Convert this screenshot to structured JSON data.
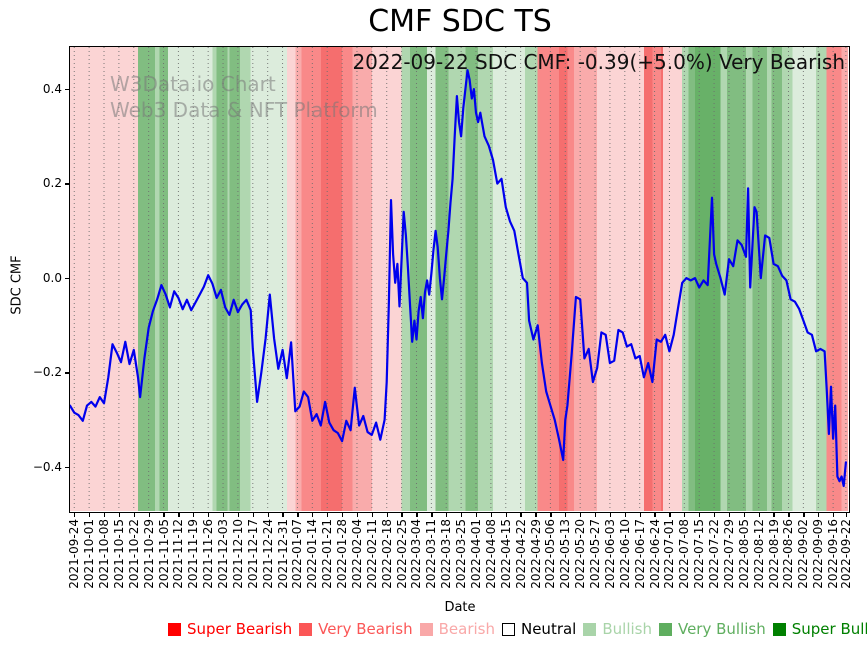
{
  "page": {
    "title": "CMF SDC TS",
    "annotation": "2022-09-22 SDC CMF: -0.39(+5.0%) Very Bearish",
    "watermark_line1": "W3Data.io Chart",
    "watermark_line2": "Web3 Data & NFT Platform"
  },
  "chart_data": {
    "type": "line",
    "title": "CMF SDC TS",
    "xlabel": "Date",
    "ylabel": "SDC CMF",
    "x_start_date": "2021-09-24",
    "x_end_date": "2022-09-22",
    "xlim_days": [
      -2,
      364
    ],
    "ylim": [
      -0.493,
      0.489
    ],
    "grid": {
      "axis": "x",
      "style": "dotted",
      "color": "#6e6e6e"
    },
    "line_color": "#0000ee",
    "line_width": 2.2,
    "y_tick_values": [
      0.4,
      0.2,
      0.0,
      -0.2,
      -0.4
    ],
    "y_tick_labels": [
      "0.4",
      "0.2",
      "0.0",
      "−0.2",
      "−0.4"
    ],
    "x_tick_days": [
      0,
      7,
      14,
      21,
      28,
      35,
      42,
      49,
      56,
      63,
      70,
      77,
      84,
      91,
      98,
      105,
      112,
      119,
      126,
      133,
      140,
      147,
      154,
      161,
      168,
      175,
      182,
      189,
      196,
      203,
      210,
      217,
      224,
      231,
      238,
      245,
      252,
      259,
      266,
      273,
      280,
      287,
      294,
      301,
      308,
      315,
      322,
      329,
      336,
      343,
      350,
      357,
      363
    ],
    "x_tick_labels": [
      "2021-09-24",
      "2021-10-01",
      "2021-10-08",
      "2021-10-15",
      "2021-10-22",
      "2021-10-29",
      "2021-11-05",
      "2021-11-12",
      "2021-11-19",
      "2021-11-26",
      "2021-12-03",
      "2021-12-10",
      "2021-12-17",
      "2021-12-24",
      "2021-12-31",
      "2022-01-07",
      "2022-01-14",
      "2022-01-21",
      "2022-01-28",
      "2022-02-04",
      "2022-02-11",
      "2022-02-18",
      "2022-02-25",
      "2022-03-04",
      "2022-03-11",
      "2022-03-18",
      "2022-03-25",
      "2022-04-01",
      "2022-04-08",
      "2022-04-15",
      "2022-04-22",
      "2022-04-29",
      "2022-05-06",
      "2022-05-13",
      "2022-05-20",
      "2022-05-27",
      "2022-06-03",
      "2022-06-10",
      "2022-06-17",
      "2022-06-24",
      "2022-07-01",
      "2022-07-08",
      "2022-07-15",
      "2022-07-22",
      "2022-07-29",
      "2022-08-05",
      "2022-08-12",
      "2022-08-19",
      "2022-08-26",
      "2022-09-02",
      "2022-09-09",
      "2022-09-16",
      "2022-09-22"
    ],
    "band_levels": {
      "bearish": "#fbd4d4",
      "bearish_mid": "#f9abab",
      "very_bearish": "#f98989",
      "very_bearish_strong": "#f56e6e",
      "bullish_pale": "#dcecdc",
      "bullish": "#b0d7b0",
      "very_bullish": "#81bd81",
      "very_bullish_strong": "#68b168"
    },
    "bands": [
      [
        -2,
        30,
        "bearish"
      ],
      [
        30,
        38,
        "very_bullish"
      ],
      [
        38,
        40,
        "bullish"
      ],
      [
        40,
        44,
        "very_bullish"
      ],
      [
        44,
        65,
        "bullish_pale"
      ],
      [
        65,
        67,
        "bullish"
      ],
      [
        67,
        72,
        "very_bullish"
      ],
      [
        72,
        73,
        "bullish"
      ],
      [
        73,
        78,
        "very_bullish"
      ],
      [
        78,
        83,
        "bullish"
      ],
      [
        83,
        100,
        "bullish_pale"
      ],
      [
        100,
        104,
        "bearish"
      ],
      [
        104,
        107,
        "bearish_mid"
      ],
      [
        107,
        116,
        "very_bearish"
      ],
      [
        116,
        126,
        "very_bearish_strong"
      ],
      [
        126,
        131,
        "very_bearish"
      ],
      [
        131,
        140,
        "bearish_mid"
      ],
      [
        140,
        154,
        "bearish"
      ],
      [
        154,
        158,
        "bullish"
      ],
      [
        158,
        166,
        "very_bullish"
      ],
      [
        166,
        170,
        "bullish_pale"
      ],
      [
        170,
        176,
        "very_bullish"
      ],
      [
        176,
        184,
        "bullish"
      ],
      [
        184,
        190,
        "very_bullish"
      ],
      [
        190,
        197,
        "bullish"
      ],
      [
        197,
        212,
        "bullish_pale"
      ],
      [
        212,
        218,
        "bullish"
      ],
      [
        218,
        228,
        "very_bearish"
      ],
      [
        228,
        232,
        "very_bearish_strong"
      ],
      [
        232,
        235,
        "very_bearish"
      ],
      [
        235,
        246,
        "bearish_mid"
      ],
      [
        246,
        268,
        "bearish"
      ],
      [
        268,
        272,
        "very_bearish_strong"
      ],
      [
        272,
        276,
        "very_bearish"
      ],
      [
        276,
        277,
        "very_bearish_strong"
      ],
      [
        277,
        286,
        "bearish"
      ],
      [
        286,
        289,
        "bullish"
      ],
      [
        289,
        292,
        "very_bullish"
      ],
      [
        292,
        304,
        "very_bullish_strong"
      ],
      [
        304,
        307,
        "bullish"
      ],
      [
        307,
        316,
        "very_bullish"
      ],
      [
        316,
        319,
        "bullish"
      ],
      [
        319,
        326,
        "very_bullish"
      ],
      [
        326,
        328,
        "bullish"
      ],
      [
        328,
        333,
        "very_bullish"
      ],
      [
        333,
        338,
        "bullish"
      ],
      [
        338,
        349,
        "bullish_pale"
      ],
      [
        349,
        354,
        "bullish"
      ],
      [
        354,
        361,
        "very_bearish"
      ],
      [
        361,
        364,
        "bearish_mid"
      ]
    ],
    "series": [
      {
        "name": "SDC CMF",
        "points": [
          [
            -2,
            -0.27
          ],
          [
            0,
            -0.285
          ],
          [
            2,
            -0.29
          ],
          [
            4,
            -0.302
          ],
          [
            6,
            -0.27
          ],
          [
            8,
            -0.262
          ],
          [
            10,
            -0.272
          ],
          [
            12,
            -0.252
          ],
          [
            14,
            -0.265
          ],
          [
            16,
            -0.21
          ],
          [
            18,
            -0.14
          ],
          [
            20,
            -0.158
          ],
          [
            22,
            -0.178
          ],
          [
            24,
            -0.135
          ],
          [
            26,
            -0.182
          ],
          [
            28,
            -0.152
          ],
          [
            30,
            -0.21
          ],
          [
            31,
            -0.252
          ],
          [
            33,
            -0.17
          ],
          [
            35,
            -0.105
          ],
          [
            37,
            -0.07
          ],
          [
            39,
            -0.045
          ],
          [
            41,
            -0.015
          ],
          [
            43,
            -0.035
          ],
          [
            45,
            -0.062
          ],
          [
            47,
            -0.028
          ],
          [
            49,
            -0.042
          ],
          [
            51,
            -0.066
          ],
          [
            53,
            -0.046
          ],
          [
            55,
            -0.068
          ],
          [
            57,
            -0.052
          ],
          [
            59,
            -0.035
          ],
          [
            61,
            -0.018
          ],
          [
            63,
            0.006
          ],
          [
            65,
            -0.012
          ],
          [
            67,
            -0.042
          ],
          [
            69,
            -0.025
          ],
          [
            71,
            -0.062
          ],
          [
            73,
            -0.078
          ],
          [
            75,
            -0.046
          ],
          [
            77,
            -0.072
          ],
          [
            79,
            -0.056
          ],
          [
            81,
            -0.046
          ],
          [
            83,
            -0.068
          ],
          [
            84,
            -0.15
          ],
          [
            86,
            -0.262
          ],
          [
            88,
            -0.2
          ],
          [
            90,
            -0.128
          ],
          [
            92,
            -0.035
          ],
          [
            94,
            -0.128
          ],
          [
            96,
            -0.192
          ],
          [
            98,
            -0.152
          ],
          [
            100,
            -0.212
          ],
          [
            102,
            -0.136
          ],
          [
            104,
            -0.282
          ],
          [
            106,
            -0.272
          ],
          [
            108,
            -0.24
          ],
          [
            110,
            -0.252
          ],
          [
            112,
            -0.302
          ],
          [
            114,
            -0.288
          ],
          [
            116,
            -0.312
          ],
          [
            118,
            -0.262
          ],
          [
            120,
            -0.306
          ],
          [
            122,
            -0.322
          ],
          [
            124,
            -0.328
          ],
          [
            126,
            -0.345
          ],
          [
            128,
            -0.302
          ],
          [
            130,
            -0.322
          ],
          [
            132,
            -0.232
          ],
          [
            134,
            -0.312
          ],
          [
            136,
            -0.292
          ],
          [
            138,
            -0.326
          ],
          [
            140,
            -0.332
          ],
          [
            142,
            -0.306
          ],
          [
            144,
            -0.342
          ],
          [
            146,
            -0.3
          ],
          [
            147,
            -0.22
          ],
          [
            148,
            -0.05
          ],
          [
            149,
            0.165
          ],
          [
            150,
            0.05
          ],
          [
            151,
            -0.01
          ],
          [
            152,
            0.03
          ],
          [
            153,
            -0.06
          ],
          [
            155,
            0.14
          ],
          [
            156,
            0.09
          ],
          [
            157,
            0.02
          ],
          [
            158,
            -0.06
          ],
          [
            159,
            -0.135
          ],
          [
            160,
            -0.09
          ],
          [
            161,
            -0.13
          ],
          [
            162,
            -0.07
          ],
          [
            163,
            -0.04
          ],
          [
            164,
            -0.085
          ],
          [
            165,
            -0.03
          ],
          [
            166,
            -0.005
          ],
          [
            167,
            -0.035
          ],
          [
            168,
            0.01
          ],
          [
            169,
            0.06
          ],
          [
            170,
            0.1
          ],
          [
            171,
            0.065
          ],
          [
            172,
            0.0
          ],
          [
            173,
            -0.045
          ],
          [
            174,
            0.0
          ],
          [
            175,
            0.05
          ],
          [
            176,
            0.1
          ],
          [
            177,
            0.16
          ],
          [
            178,
            0.21
          ],
          [
            179,
            0.3
          ],
          [
            180,
            0.385
          ],
          [
            181,
            0.33
          ],
          [
            182,
            0.3
          ],
          [
            183,
            0.36
          ],
          [
            184,
            0.4
          ],
          [
            185,
            0.44
          ],
          [
            186,
            0.42
          ],
          [
            187,
            0.38
          ],
          [
            188,
            0.4
          ],
          [
            189,
            0.35
          ],
          [
            190,
            0.33
          ],
          [
            191,
            0.35
          ],
          [
            193,
            0.3
          ],
          [
            195,
            0.28
          ],
          [
            197,
            0.25
          ],
          [
            199,
            0.2
          ],
          [
            201,
            0.21
          ],
          [
            203,
            0.15
          ],
          [
            205,
            0.12
          ],
          [
            207,
            0.1
          ],
          [
            209,
            0.05
          ],
          [
            211,
            0.0
          ],
          [
            213,
            -0.01
          ],
          [
            214,
            -0.09
          ],
          [
            216,
            -0.13
          ],
          [
            218,
            -0.1
          ],
          [
            220,
            -0.18
          ],
          [
            222,
            -0.24
          ],
          [
            224,
            -0.27
          ],
          [
            226,
            -0.3
          ],
          [
            228,
            -0.34
          ],
          [
            230,
            -0.385
          ],
          [
            231,
            -0.3
          ],
          [
            232,
            -0.27
          ],
          [
            234,
            -0.16
          ],
          [
            236,
            -0.04
          ],
          [
            238,
            -0.045
          ],
          [
            240,
            -0.17
          ],
          [
            242,
            -0.15
          ],
          [
            244,
            -0.22
          ],
          [
            246,
            -0.19
          ],
          [
            248,
            -0.115
          ],
          [
            250,
            -0.12
          ],
          [
            252,
            -0.18
          ],
          [
            254,
            -0.175
          ],
          [
            256,
            -0.11
          ],
          [
            258,
            -0.115
          ],
          [
            260,
            -0.145
          ],
          [
            262,
            -0.14
          ],
          [
            264,
            -0.17
          ],
          [
            266,
            -0.165
          ],
          [
            268,
            -0.21
          ],
          [
            270,
            -0.18
          ],
          [
            272,
            -0.22
          ],
          [
            274,
            -0.13
          ],
          [
            276,
            -0.135
          ],
          [
            278,
            -0.12
          ],
          [
            280,
            -0.155
          ],
          [
            282,
            -0.12
          ],
          [
            284,
            -0.065
          ],
          [
            286,
            -0.01
          ],
          [
            288,
            0.0
          ],
          [
            290,
            -0.005
          ],
          [
            292,
            0.0
          ],
          [
            294,
            -0.02
          ],
          [
            296,
            -0.005
          ],
          [
            298,
            -0.015
          ],
          [
            300,
            0.17
          ],
          [
            301,
            0.05
          ],
          [
            302,
            0.03
          ],
          [
            304,
            0.0
          ],
          [
            306,
            -0.035
          ],
          [
            308,
            0.04
          ],
          [
            310,
            0.025
          ],
          [
            312,
            0.08
          ],
          [
            314,
            0.07
          ],
          [
            316,
            0.045
          ],
          [
            317,
            0.19
          ],
          [
            318,
            -0.02
          ],
          [
            320,
            0.15
          ],
          [
            321,
            0.14
          ],
          [
            323,
            0.0
          ],
          [
            325,
            0.09
          ],
          [
            327,
            0.085
          ],
          [
            329,
            0.03
          ],
          [
            331,
            0.025
          ],
          [
            333,
            0.005
          ],
          [
            335,
            -0.005
          ],
          [
            337,
            -0.045
          ],
          [
            339,
            -0.05
          ],
          [
            341,
            -0.065
          ],
          [
            343,
            -0.09
          ],
          [
            345,
            -0.115
          ],
          [
            347,
            -0.12
          ],
          [
            349,
            -0.155
          ],
          [
            351,
            -0.15
          ],
          [
            353,
            -0.155
          ],
          [
            354,
            -0.235
          ],
          [
            355,
            -0.33
          ],
          [
            356,
            -0.23
          ],
          [
            357,
            -0.34
          ],
          [
            358,
            -0.27
          ],
          [
            359,
            -0.42
          ],
          [
            360,
            -0.43
          ],
          [
            361,
            -0.42
          ],
          [
            362,
            -0.44
          ],
          [
            363,
            -0.39
          ]
        ]
      }
    ],
    "legend_position": "bottom",
    "legend": [
      {
        "label": "Super Bearish",
        "color": "#ff0000",
        "text_color": "#ff0000"
      },
      {
        "label": "Very Bearish",
        "color": "#fb5656",
        "text_color": "#fb5656"
      },
      {
        "label": "Bearish",
        "color": "#f9a8a8",
        "text_color": "#f9a8a8"
      },
      {
        "label": "Neutral",
        "color": "#ffffff",
        "text_color": "#000000",
        "edge_color": "#000000"
      },
      {
        "label": "Bullish",
        "color": "#a9d4a9",
        "text_color": "#a9d4a9"
      },
      {
        "label": "Very Bullish",
        "color": "#5fae5f",
        "text_color": "#5fae5f"
      },
      {
        "label": "Super Bullish",
        "color": "#008000",
        "text_color": "#008000"
      }
    ]
  }
}
